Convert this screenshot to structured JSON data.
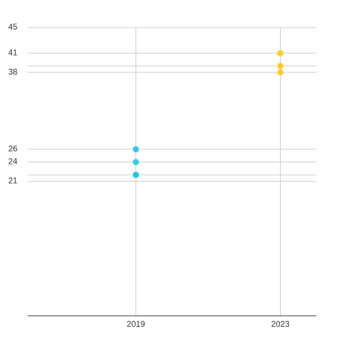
{
  "chart_data": {
    "type": "scatter",
    "xlim": [
      2016,
      2024
    ],
    "xticks": [
      2019,
      2023
    ],
    "ylim": [
      0,
      45
    ],
    "yticks": [
      21,
      {
        "value": 22,
        "label": null
      },
      24,
      26,
      38,
      {
        "value": 39,
        "label": null
      },
      41,
      45
    ],
    "grid": true,
    "series": [
      {
        "color": "#1cc6e8",
        "x": [
          2019,
          2019,
          2019,
          2019
        ],
        "values": [
          26,
          24,
          22,
          22
        ]
      },
      {
        "color": "#ffc90e",
        "x": [
          2023,
          2023,
          2023
        ],
        "values": [
          41,
          39,
          38
        ]
      }
    ]
  }
}
